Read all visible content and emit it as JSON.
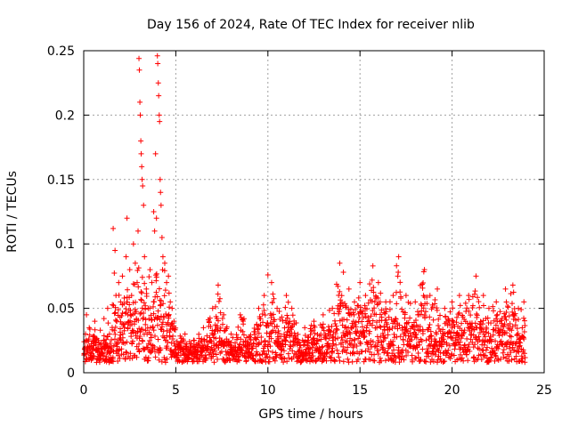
{
  "chart_data": {
    "type": "scatter",
    "title": "Day 156 of 2024, Rate Of TEC Index for receiver nlib",
    "xlabel": "GPS time / hours",
    "ylabel": "ROTI / TECUs",
    "xlim": [
      0,
      25
    ],
    "ylim": [
      0,
      0.25
    ],
    "xticks": [
      0,
      5,
      10,
      15,
      20,
      25
    ],
    "xtick_labels": [
      "0",
      "5",
      "10",
      "15",
      "20",
      "25"
    ],
    "yticks": [
      0,
      0.05,
      0.1,
      0.15,
      0.2,
      0.25
    ],
    "ytick_labels": [
      "0",
      "0.05",
      "0.1",
      "0.15",
      "0.2",
      "0.25"
    ],
    "grid": true,
    "marker": "+",
    "color": "#ff0000",
    "series": [
      {
        "name": "ROTI",
        "points": [
          [
            0.05,
            0.015
          ],
          [
            0.1,
            0.03
          ],
          [
            0.15,
            0.045
          ],
          [
            0.2,
            0.02
          ],
          [
            0.3,
            0.035
          ],
          [
            0.4,
            0.012
          ],
          [
            0.5,
            0.028
          ],
          [
            0.6,
            0.04
          ],
          [
            0.7,
            0.018
          ],
          [
            0.8,
            0.025
          ],
          [
            0.9,
            0.033
          ],
          [
            1.0,
            0.015
          ],
          [
            1.1,
            0.042
          ],
          [
            1.2,
            0.022
          ],
          [
            1.3,
            0.05
          ],
          [
            1.4,
            0.03
          ],
          [
            1.5,
            0.02
          ],
          [
            1.6,
            0.112
          ],
          [
            1.7,
            0.095
          ],
          [
            1.75,
            0.06
          ],
          [
            1.8,
            0.04
          ],
          [
            1.9,
            0.07
          ],
          [
            2.0,
            0.055
          ],
          [
            2.1,
            0.075
          ],
          [
            2.2,
            0.058
          ],
          [
            2.3,
            0.09
          ],
          [
            2.35,
            0.12
          ],
          [
            2.4,
            0.045
          ],
          [
            2.5,
            0.08
          ],
          [
            2.6,
            0.06
          ],
          [
            2.7,
            0.1
          ],
          [
            2.8,
            0.085
          ],
          [
            2.9,
            0.07
          ],
          [
            2.95,
            0.11
          ],
          [
            3.0,
            0.244
          ],
          [
            3.02,
            0.235
          ],
          [
            3.05,
            0.21
          ],
          [
            3.07,
            0.2
          ],
          [
            3.1,
            0.18
          ],
          [
            3.12,
            0.17
          ],
          [
            3.15,
            0.16
          ],
          [
            3.17,
            0.15
          ],
          [
            3.2,
            0.145
          ],
          [
            3.25,
            0.13
          ],
          [
            3.3,
            0.09
          ],
          [
            3.4,
            0.065
          ],
          [
            3.5,
            0.05
          ],
          [
            3.6,
            0.08
          ],
          [
            3.7,
            0.07
          ],
          [
            3.8,
            0.125
          ],
          [
            3.85,
            0.11
          ],
          [
            3.9,
            0.17
          ],
          [
            3.95,
            0.12
          ],
          [
            4.0,
            0.246
          ],
          [
            4.02,
            0.24
          ],
          [
            4.05,
            0.225
          ],
          [
            4.07,
            0.215
          ],
          [
            4.1,
            0.2
          ],
          [
            4.12,
            0.195
          ],
          [
            4.15,
            0.15
          ],
          [
            4.17,
            0.14
          ],
          [
            4.2,
            0.13
          ],
          [
            4.25,
            0.105
          ],
          [
            4.3,
            0.09
          ],
          [
            4.4,
            0.085
          ],
          [
            4.5,
            0.07
          ],
          [
            4.6,
            0.075
          ],
          [
            4.7,
            0.055
          ],
          [
            4.8,
            0.05
          ],
          [
            4.9,
            0.04
          ],
          [
            5.1,
            0.02
          ],
          [
            5.5,
            0.03
          ],
          [
            6.0,
            0.025
          ],
          [
            6.5,
            0.035
          ],
          [
            7.0,
            0.05
          ],
          [
            7.3,
            0.068
          ],
          [
            7.6,
            0.045
          ],
          [
            8.0,
            0.03
          ],
          [
            8.5,
            0.045
          ],
          [
            9.0,
            0.028
          ],
          [
            9.5,
            0.05
          ],
          [
            9.8,
            0.06
          ],
          [
            10.0,
            0.076
          ],
          [
            10.2,
            0.07
          ],
          [
            10.5,
            0.05
          ],
          [
            11.0,
            0.06
          ],
          [
            11.3,
            0.05
          ],
          [
            12.0,
            0.035
          ],
          [
            12.5,
            0.04
          ],
          [
            13.0,
            0.045
          ],
          [
            13.5,
            0.05
          ],
          [
            13.9,
            0.085
          ],
          [
            14.1,
            0.078
          ],
          [
            14.4,
            0.065
          ],
          [
            14.7,
            0.055
          ],
          [
            15.0,
            0.07
          ],
          [
            15.3,
            0.06
          ],
          [
            15.7,
            0.083
          ],
          [
            16.0,
            0.07
          ],
          [
            16.4,
            0.055
          ],
          [
            16.8,
            0.06
          ],
          [
            17.1,
            0.09
          ],
          [
            17.5,
            0.06
          ],
          [
            18.0,
            0.055
          ],
          [
            18.5,
            0.08
          ],
          [
            18.8,
            0.06
          ],
          [
            19.2,
            0.065
          ],
          [
            19.6,
            0.05
          ],
          [
            20.0,
            0.055
          ],
          [
            20.4,
            0.06
          ],
          [
            20.9,
            0.06
          ],
          [
            21.3,
            0.075
          ],
          [
            21.7,
            0.06
          ],
          [
            22.0,
            0.05
          ],
          [
            22.4,
            0.055
          ],
          [
            22.9,
            0.065
          ],
          [
            23.3,
            0.068
          ],
          [
            23.6,
            0.05
          ],
          [
            23.9,
            0.055
          ]
        ]
      }
    ]
  }
}
